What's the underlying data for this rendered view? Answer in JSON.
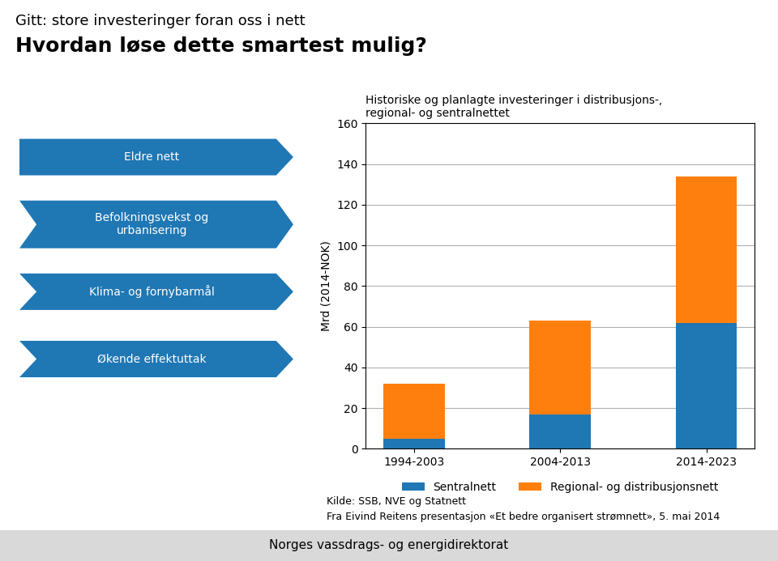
{
  "chart_data": {
    "type": "bar",
    "title": "Historiske og planlagte investeringer i distribusjons-,\nregional- og sentralnettet",
    "categories": [
      "1994-2003",
      "2004-2013",
      "2014-2023"
    ],
    "series": [
      {
        "name": "Sentralnett",
        "values": [
          5,
          17,
          62
        ]
      },
      {
        "name": "Regional- og distribusjonsnett",
        "values": [
          27,
          46,
          72
        ]
      }
    ],
    "stacked": true,
    "ylabel": "Mrd (2014-NOK)",
    "ylim": [
      0,
      160
    ],
    "yticks": [
      0,
      20,
      40,
      60,
      80,
      100,
      120,
      140,
      160
    ],
    "grid": true,
    "legend": "upper center",
    "annotations": [
      [
        "Gitt: store investeringer foran oss i nett",
        "Hvordan løse dette smartest mulig?"
      ],
      [
        "Eldre nett",
        "Befolkningsvekst og\nurbanisering",
        "Klima- og fornybarmål",
        "Økende effektuttak"
      ],
      [
        "Kilde: SSB, NVE og Statnett",
        "Fra Eivind Reitens presentasjon «Et bedre organisert strømnett», 5. mai 2014"
      ],
      [
        "Norges vassdrags- og energidirektorat"
      ]
    ]
  }
}
